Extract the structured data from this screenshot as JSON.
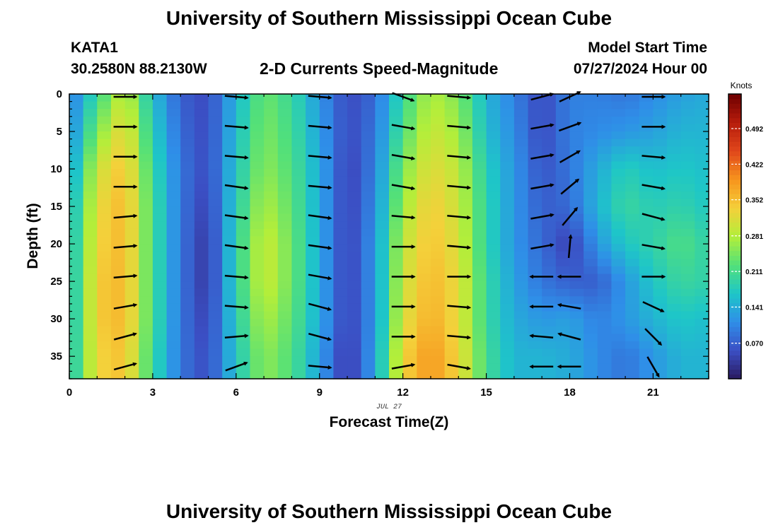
{
  "header": {
    "title": "University of Southern Mississippi Ocean Cube",
    "station": "KATA1",
    "coordinates": "30.2580N  88.2130W",
    "subtitle": "2-D Currents Speed-Magnitude",
    "model_start_label": "Model Start Time",
    "model_start_value": "07/27/2024 Hour 00"
  },
  "footer": {
    "title": "University of Southern Mississippi Ocean Cube"
  },
  "chart_data": {
    "type": "heatmap",
    "xlabel": "Forecast Time(Z)",
    "ylabel": "Depth (ft)",
    "date_label": "JUL 27",
    "xlim": [
      0,
      23
    ],
    "ylim": [
      0,
      38
    ],
    "x_ticks": [
      0,
      3,
      6,
      9,
      12,
      15,
      18,
      21
    ],
    "y_ticks": [
      0,
      5,
      10,
      15,
      20,
      25,
      30,
      35
    ],
    "colorbar": {
      "label": "Knots",
      "min": 0.0,
      "max": 0.56,
      "ticks": [
        "0.070",
        "0.141",
        "0.211",
        "0.281",
        "0.352",
        "0.422",
        "0.492"
      ],
      "colors": [
        "#2a1a5e",
        "#3b4fc4",
        "#2f8ee8",
        "#1ec6c8",
        "#52e07a",
        "#b3ee3a",
        "#f4d03a",
        "#f7941d",
        "#e0471b",
        "#b71c0c",
        "#6e0000"
      ]
    },
    "speed_hours": [
      0,
      1,
      2,
      3,
      4,
      5,
      6,
      7,
      8,
      9,
      10,
      11,
      12,
      13,
      14,
      15,
      16,
      17,
      18,
      19,
      20,
      21,
      22,
      23
    ],
    "speed_depths": [
      0,
      5,
      10,
      15,
      20,
      25,
      30,
      35
    ],
    "speed_knots": [
      [
        0.09,
        0.2,
        0.3,
        0.16,
        0.07,
        0.05,
        0.15,
        0.24,
        0.2,
        0.12,
        0.05,
        0.08,
        0.2,
        0.28,
        0.25,
        0.15,
        0.1,
        0.05,
        0.1,
        0.1,
        0.09,
        0.11,
        0.13,
        0.14
      ],
      [
        0.1,
        0.25,
        0.33,
        0.18,
        0.08,
        0.05,
        0.16,
        0.25,
        0.21,
        0.13,
        0.05,
        0.09,
        0.22,
        0.3,
        0.27,
        0.16,
        0.11,
        0.05,
        0.1,
        0.11,
        0.12,
        0.13,
        0.15,
        0.15
      ],
      [
        0.12,
        0.3,
        0.35,
        0.2,
        0.09,
        0.05,
        0.17,
        0.26,
        0.22,
        0.14,
        0.04,
        0.1,
        0.25,
        0.32,
        0.29,
        0.18,
        0.12,
        0.06,
        0.09,
        0.14,
        0.18,
        0.16,
        0.17,
        0.16
      ],
      [
        0.14,
        0.32,
        0.36,
        0.21,
        0.09,
        0.04,
        0.18,
        0.28,
        0.23,
        0.14,
        0.04,
        0.11,
        0.27,
        0.34,
        0.3,
        0.19,
        0.12,
        0.07,
        0.08,
        0.15,
        0.2,
        0.18,
        0.19,
        0.17
      ],
      [
        0.15,
        0.33,
        0.36,
        0.21,
        0.09,
        0.03,
        0.19,
        0.3,
        0.24,
        0.14,
        0.04,
        0.12,
        0.29,
        0.35,
        0.31,
        0.19,
        0.12,
        0.08,
        0.04,
        0.12,
        0.17,
        0.19,
        0.22,
        0.19
      ],
      [
        0.15,
        0.34,
        0.36,
        0.21,
        0.09,
        0.03,
        0.19,
        0.3,
        0.24,
        0.14,
        0.04,
        0.12,
        0.3,
        0.36,
        0.32,
        0.2,
        0.13,
        0.09,
        0.07,
        0.07,
        0.12,
        0.17,
        0.2,
        0.19
      ],
      [
        0.15,
        0.34,
        0.36,
        0.21,
        0.09,
        0.04,
        0.18,
        0.28,
        0.23,
        0.14,
        0.04,
        0.12,
        0.31,
        0.37,
        0.32,
        0.2,
        0.14,
        0.12,
        0.13,
        0.1,
        0.12,
        0.15,
        0.17,
        0.16
      ],
      [
        0.16,
        0.33,
        0.35,
        0.2,
        0.09,
        0.05,
        0.17,
        0.26,
        0.22,
        0.13,
        0.03,
        0.13,
        0.33,
        0.39,
        0.33,
        0.21,
        0.15,
        0.15,
        0.14,
        0.11,
        0.09,
        0.12,
        0.15,
        0.15
      ]
    ],
    "vector_hours": [
      2,
      6,
      9,
      12,
      14,
      17,
      18,
      21
    ],
    "vector_depths": [
      0,
      4,
      8,
      12,
      16,
      20,
      24,
      28,
      32,
      36
    ],
    "vector_angles_deg": [
      [
        0,
        5,
        5,
        20,
        5,
        -15,
        -25,
        0
      ],
      [
        0,
        5,
        5,
        10,
        5,
        -10,
        -20,
        0
      ],
      [
        0,
        5,
        5,
        10,
        5,
        -10,
        -30,
        5
      ],
      [
        0,
        8,
        5,
        10,
        5,
        -10,
        -40,
        10
      ],
      [
        -5,
        8,
        8,
        5,
        5,
        -10,
        -50,
        15
      ],
      [
        -5,
        8,
        8,
        0,
        5,
        -10,
        -85,
        10
      ],
      [
        -5,
        5,
        10,
        0,
        0,
        180,
        180,
        0
      ],
      [
        -10,
        5,
        15,
        0,
        5,
        180,
        190,
        25
      ],
      [
        -15,
        -5,
        15,
        0,
        5,
        185,
        195,
        45
      ],
      [
        -15,
        -20,
        5,
        -10,
        10,
        180,
        180,
        60
      ]
    ]
  }
}
